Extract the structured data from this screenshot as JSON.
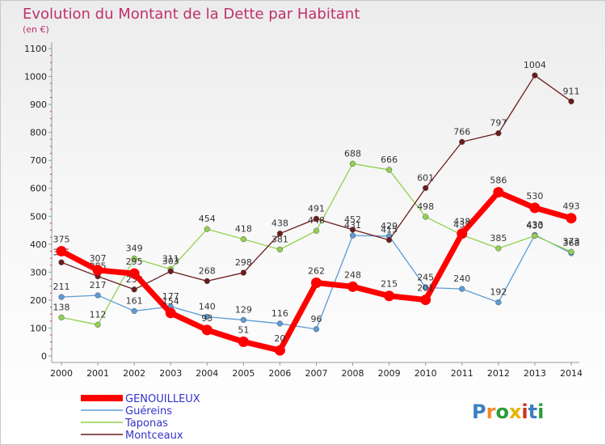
{
  "chart_data": {
    "type": "line",
    "title": "Evolution du Montant de la Dette par Habitant",
    "subtitle": "(en €)",
    "categories": [
      "2000",
      "2001",
      "2002",
      "2003",
      "2004",
      "2005",
      "2006",
      "2007",
      "2008",
      "2009",
      "2010",
      "2011",
      "2012",
      "2013",
      "2014"
    ],
    "ylim": [
      0,
      1100
    ],
    "yticks": [
      0,
      100,
      200,
      300,
      400,
      500,
      600,
      700,
      800,
      900,
      1000,
      1100
    ],
    "grid": false,
    "legend_position": "bottom-left",
    "series": [
      {
        "name": "GENOUILLEUX",
        "color": "#ff0000",
        "values": [
          375,
          307,
          295,
          154,
          93,
          51,
          20,
          262,
          248,
          215,
          201,
          438,
          586,
          530,
          493
        ]
      },
      {
        "name": "Guéreins",
        "color": "#5b9bd5",
        "values": [
          211,
          217,
          161,
          177,
          140,
          129,
          116,
          96,
          431,
          429,
          245,
          240,
          192,
          433,
          368
        ]
      },
      {
        "name": "Taponas",
        "color": "#92d050",
        "values": [
          138,
          112,
          349,
          311,
          454,
          418,
          381,
          448,
          688,
          666,
          498,
          433,
          385,
          430,
          373
        ]
      },
      {
        "name": "Montceaux",
        "color": "#6b1c1c",
        "values": [
          335,
          285,
          238,
          303,
          268,
          298,
          438,
          491,
          452,
          415,
          601,
          766,
          797,
          1004,
          911
        ]
      }
    ]
  },
  "watermark": {
    "text": "Proxiti"
  }
}
